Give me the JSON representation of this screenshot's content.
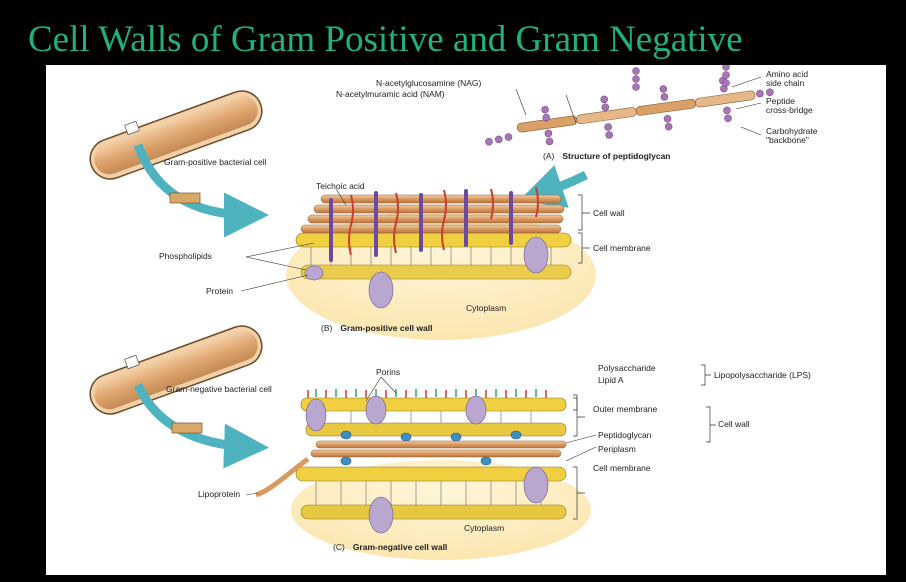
{
  "title": "Cell Walls of Gram Positive and Gram Negative",
  "panel_a": {
    "letter": "(A)",
    "caption": "Structure of peptidoglycan",
    "labels": {
      "nag": "N-acetylglucosamine (NAG)",
      "nam": "N-acetylmuramic acid (NAM)",
      "amino_acid": "Amino acid\nside chain",
      "peptide": "Peptide\ncross-bridge",
      "carbohydrate": "Carbohydrate\n\"backbone\""
    }
  },
  "panel_b": {
    "letter": "(B)",
    "caption": "Gram-positive cell wall",
    "labels": {
      "cell": "Gram-positive bacterial cell",
      "teichoic": "Teichoic acid",
      "cell_wall": "Cell wall",
      "cell_membrane": "Cell membrane",
      "phospholipids": "Phospholipids",
      "protein": "Protein",
      "cytoplasm": "Cytoplasm"
    }
  },
  "panel_c": {
    "letter": "(C)",
    "caption": "Gram-negative cell wall",
    "labels": {
      "cell": "Gram-negative bacterial cell",
      "porins": "Porins",
      "polysaccharide": "Polysaccharide",
      "lipid_a": "Lipid A",
      "lps": "Lipopolysaccharide (LPS)",
      "outer_membrane": "Outer membrane",
      "cell_wall": "Cell wall",
      "peptidoglycan": "Peptidoglycan",
      "periplasm": "Periplasm",
      "cell_membrane": "Cell membrane",
      "lipoprotein": "Lipoprotein",
      "cytoplasm": "Cytoplasm"
    }
  },
  "colors": {
    "title": "#20b27a",
    "arrow": "#4fb3bf",
    "rod": "#d9a068",
    "bead": "#a774b6",
    "lipid_head": "#f0d040",
    "protein": "#b9a7d0",
    "teichoic": "#6b4aa0",
    "red_chain": "#c84030",
    "porin_blue": "#3d8fc0"
  }
}
